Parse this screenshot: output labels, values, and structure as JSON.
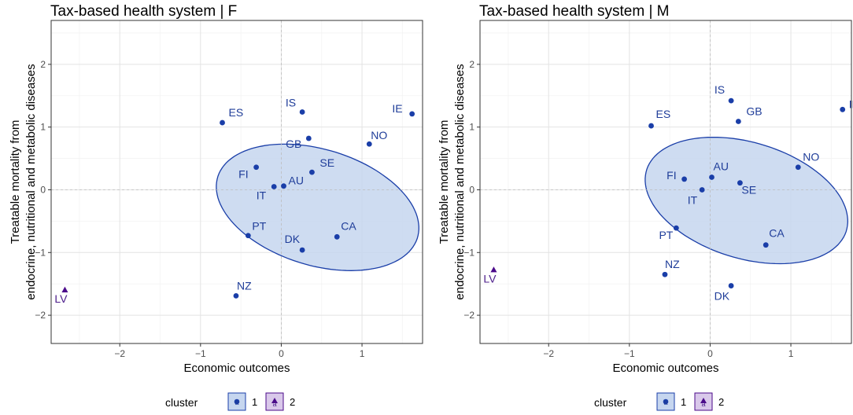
{
  "colors": {
    "cluster1_point": "#1a3ea8",
    "cluster1_label": "#1f3d99",
    "cluster2_point": "#4b0a8a",
    "cluster2_label": "#4b1c8a",
    "ellipse_fill": "#c6d6ef",
    "ellipse_stroke": "#1a3ea8",
    "grid_major": "#e3e3e3",
    "grid_minor": "#f3f3f3",
    "zero_line": "#bdbdbd",
    "legend_box2": "#d9c8ea"
  },
  "legend": {
    "title": "cluster",
    "items": [
      {
        "key": "1",
        "label": "1"
      },
      {
        "key": "2",
        "label": "2"
      }
    ]
  },
  "chart_data": [
    {
      "type": "scatter",
      "title": "Tax-based health system | F",
      "xlabel": "Economic outcomes",
      "ylabel_lines": [
        "Treatable mortality from",
        "endocrine, nutritional and metabolic diseases"
      ],
      "xlim": [
        -2.85,
        1.75
      ],
      "ylim": [
        -2.45,
        2.7
      ],
      "xticks": [
        -2,
        -1,
        0,
        1
      ],
      "yticks": [
        -2,
        -1,
        0,
        1,
        2
      ],
      "ellipse": {
        "cx": 0.45,
        "cy": -0.28,
        "rx": 1.44,
        "ry": 2.16,
        "angle_deg": 62
      },
      "points": [
        {
          "label": "ES",
          "x": -0.73,
          "y": 1.07,
          "cluster": "1"
        },
        {
          "label": "IS",
          "x": 0.26,
          "y": 1.24,
          "cluster": "1"
        },
        {
          "label": "IE",
          "x": 1.62,
          "y": 1.21,
          "cluster": "1"
        },
        {
          "label": "NO",
          "x": 1.09,
          "y": 0.73,
          "cluster": "1"
        },
        {
          "label": "GB",
          "x": 0.34,
          "y": 0.82,
          "cluster": "1"
        },
        {
          "label": "SE",
          "x": 0.38,
          "y": 0.28,
          "cluster": "1"
        },
        {
          "label": "FI",
          "x": -0.31,
          "y": 0.36,
          "cluster": "1"
        },
        {
          "label": "IT",
          "x": -0.09,
          "y": 0.05,
          "cluster": "1"
        },
        {
          "label": "AU",
          "x": 0.03,
          "y": 0.06,
          "cluster": "1"
        },
        {
          "label": "PT",
          "x": -0.41,
          "y": -0.73,
          "cluster": "1"
        },
        {
          "label": "DK",
          "x": 0.26,
          "y": -0.96,
          "cluster": "1"
        },
        {
          "label": "CA",
          "x": 0.69,
          "y": -0.75,
          "cluster": "1"
        },
        {
          "label": "NZ",
          "x": -0.56,
          "y": -1.69,
          "cluster": "1"
        },
        {
          "label": "LV",
          "x": -2.68,
          "y": -1.6,
          "cluster": "2"
        }
      ]
    },
    {
      "type": "scatter",
      "title": "Tax-based health system | M",
      "xlabel": "Economic outcomes",
      "ylabel_lines": [
        "Treatable mortality from",
        "endocrine, nutritional and metabolic diseases"
      ],
      "xlim": [
        -2.85,
        1.75
      ],
      "ylim": [
        -2.45,
        2.7
      ],
      "xticks": [
        -2,
        -1,
        0,
        1
      ],
      "yticks": [
        -2,
        -1,
        0,
        1,
        2
      ],
      "ellipse": {
        "cx": 0.45,
        "cy": -0.17,
        "rx": 1.44,
        "ry": 2.16,
        "angle_deg": 62
      },
      "points": [
        {
          "label": "IE",
          "x": 1.64,
          "y": 1.28,
          "cluster": "1"
        },
        {
          "label": "IS",
          "x": 0.26,
          "y": 1.42,
          "cluster": "1"
        },
        {
          "label": "ES",
          "x": -0.73,
          "y": 1.02,
          "cluster": "1"
        },
        {
          "label": "GB",
          "x": 0.35,
          "y": 1.09,
          "cluster": "1"
        },
        {
          "label": "NO",
          "x": 1.09,
          "y": 0.36,
          "cluster": "1"
        },
        {
          "label": "FI",
          "x": -0.32,
          "y": 0.17,
          "cluster": "1"
        },
        {
          "label": "AU",
          "x": 0.02,
          "y": 0.2,
          "cluster": "1"
        },
        {
          "label": "SE",
          "x": 0.37,
          "y": 0.11,
          "cluster": "1"
        },
        {
          "label": "IT",
          "x": -0.1,
          "y": 0.0,
          "cluster": "1"
        },
        {
          "label": "PT",
          "x": -0.42,
          "y": -0.61,
          "cluster": "1"
        },
        {
          "label": "CA",
          "x": 0.69,
          "y": -0.88,
          "cluster": "1"
        },
        {
          "label": "NZ",
          "x": -0.56,
          "y": -1.35,
          "cluster": "1"
        },
        {
          "label": "DK",
          "x": 0.26,
          "y": -1.53,
          "cluster": "1"
        },
        {
          "label": "LV",
          "x": -2.68,
          "y": -1.28,
          "cluster": "2"
        }
      ]
    }
  ]
}
